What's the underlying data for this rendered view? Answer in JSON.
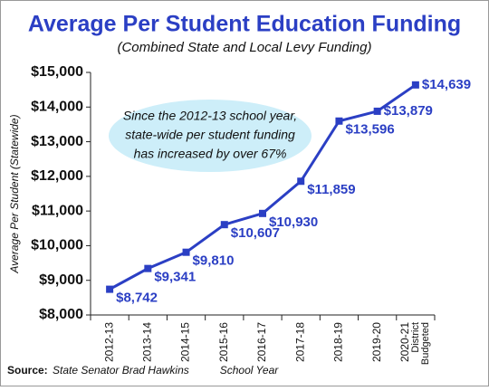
{
  "chart_data": {
    "type": "line",
    "title": "Average Per Student Education Funding",
    "subtitle": "(Combined State and Local Levy Funding)",
    "y_label": "Average Per Student (Statewide)",
    "x_label": "School Year",
    "categories": [
      "2012-13",
      "2013-14",
      "2014-15",
      "2015-16",
      "2016-17",
      "2017-18",
      "2018-19",
      "2019-20",
      "2020-21 District Budgeted"
    ],
    "series": [
      {
        "name": "Average Per Student",
        "color": "#2b3fc4",
        "values": [
          8742,
          9341,
          9810,
          10607,
          10930,
          11859,
          13596,
          13879,
          14639
        ],
        "value_labels": [
          "$8,742",
          "$9,341",
          "$9,810",
          "$10,607",
          "$10,930",
          "$11,859",
          "$13,596",
          "$13,879",
          "$14,639"
        ]
      }
    ],
    "ylim": [
      8000,
      15000
    ],
    "yticks": [
      {
        "value": 8000,
        "label": "$8,000"
      },
      {
        "value": 9000,
        "label": "$9,000"
      },
      {
        "value": 10000,
        "label": "$10,000"
      },
      {
        "value": 11000,
        "label": "$11,000"
      },
      {
        "value": 12000,
        "label": "$12,000"
      },
      {
        "value": 13000,
        "label": "$13,000"
      },
      {
        "value": 14000,
        "label": "$14,000"
      },
      {
        "value": 15000,
        "label": "$15,000"
      }
    ],
    "annotation": [
      "Since the 2012-13 school year,",
      "state-wide per student funding",
      "has increased by over 67%"
    ],
    "source_label": "Source:",
    "source": "State Senator Brad Hawkins"
  }
}
